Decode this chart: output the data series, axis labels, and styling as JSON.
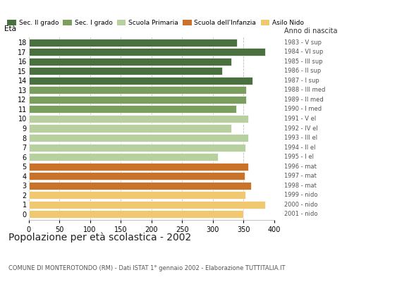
{
  "ages": [
    18,
    17,
    16,
    15,
    14,
    13,
    12,
    11,
    10,
    9,
    8,
    7,
    6,
    5,
    4,
    3,
    2,
    1,
    0
  ],
  "values": [
    340,
    385,
    330,
    315,
    365,
    355,
    355,
    338,
    358,
    330,
    358,
    353,
    308,
    358,
    352,
    362,
    353,
    385,
    350
  ],
  "anno_nascita": [
    "1983 - V sup",
    "1984 - VI sup",
    "1985 - III sup",
    "1986 - II sup",
    "1987 - I sup",
    "1988 - III med",
    "1989 - II med",
    "1990 - I med",
    "1991 - V el",
    "1992 - IV el",
    "1993 - III el",
    "1994 - II el",
    "1995 - I el",
    "1996 - mat",
    "1997 - mat",
    "1998 - mat",
    "1999 - nido",
    "2000 - nido",
    "2001 - nido"
  ],
  "colors": [
    "#4a7040",
    "#4a7040",
    "#4a7040",
    "#4a7040",
    "#4a7040",
    "#7a9e5e",
    "#7a9e5e",
    "#7a9e5e",
    "#b8d0a0",
    "#b8d0a0",
    "#b8d0a0",
    "#b8d0a0",
    "#b8d0a0",
    "#c8722a",
    "#c8722a",
    "#c8722a",
    "#f0c870",
    "#f0c870",
    "#f0c870"
  ],
  "legend_labels": [
    "Sec. II grado",
    "Sec. I grado",
    "Scuola Primaria",
    "Scuola dell'Infanzia",
    "Asilo Nido"
  ],
  "legend_colors": [
    "#4a7040",
    "#7a9e5e",
    "#b8d0a0",
    "#c8722a",
    "#f0c870"
  ],
  "title": "Popolazione per età scolastica - 2002",
  "subtitle": "COMUNE DI MONTEROTONDO (RM) - Dati ISTAT 1° gennaio 2002 - Elaborazione TUTTITALIA.IT",
  "xlabel_eta": "Età",
  "xlabel_anno": "Anno di nascita",
  "xlim": [
    0,
    400
  ],
  "xticks": [
    0,
    50,
    100,
    150,
    200,
    250,
    300,
    350,
    400
  ],
  "bg_color": "#ffffff",
  "bar_height": 0.82,
  "grid_color": "#bbbbbb"
}
